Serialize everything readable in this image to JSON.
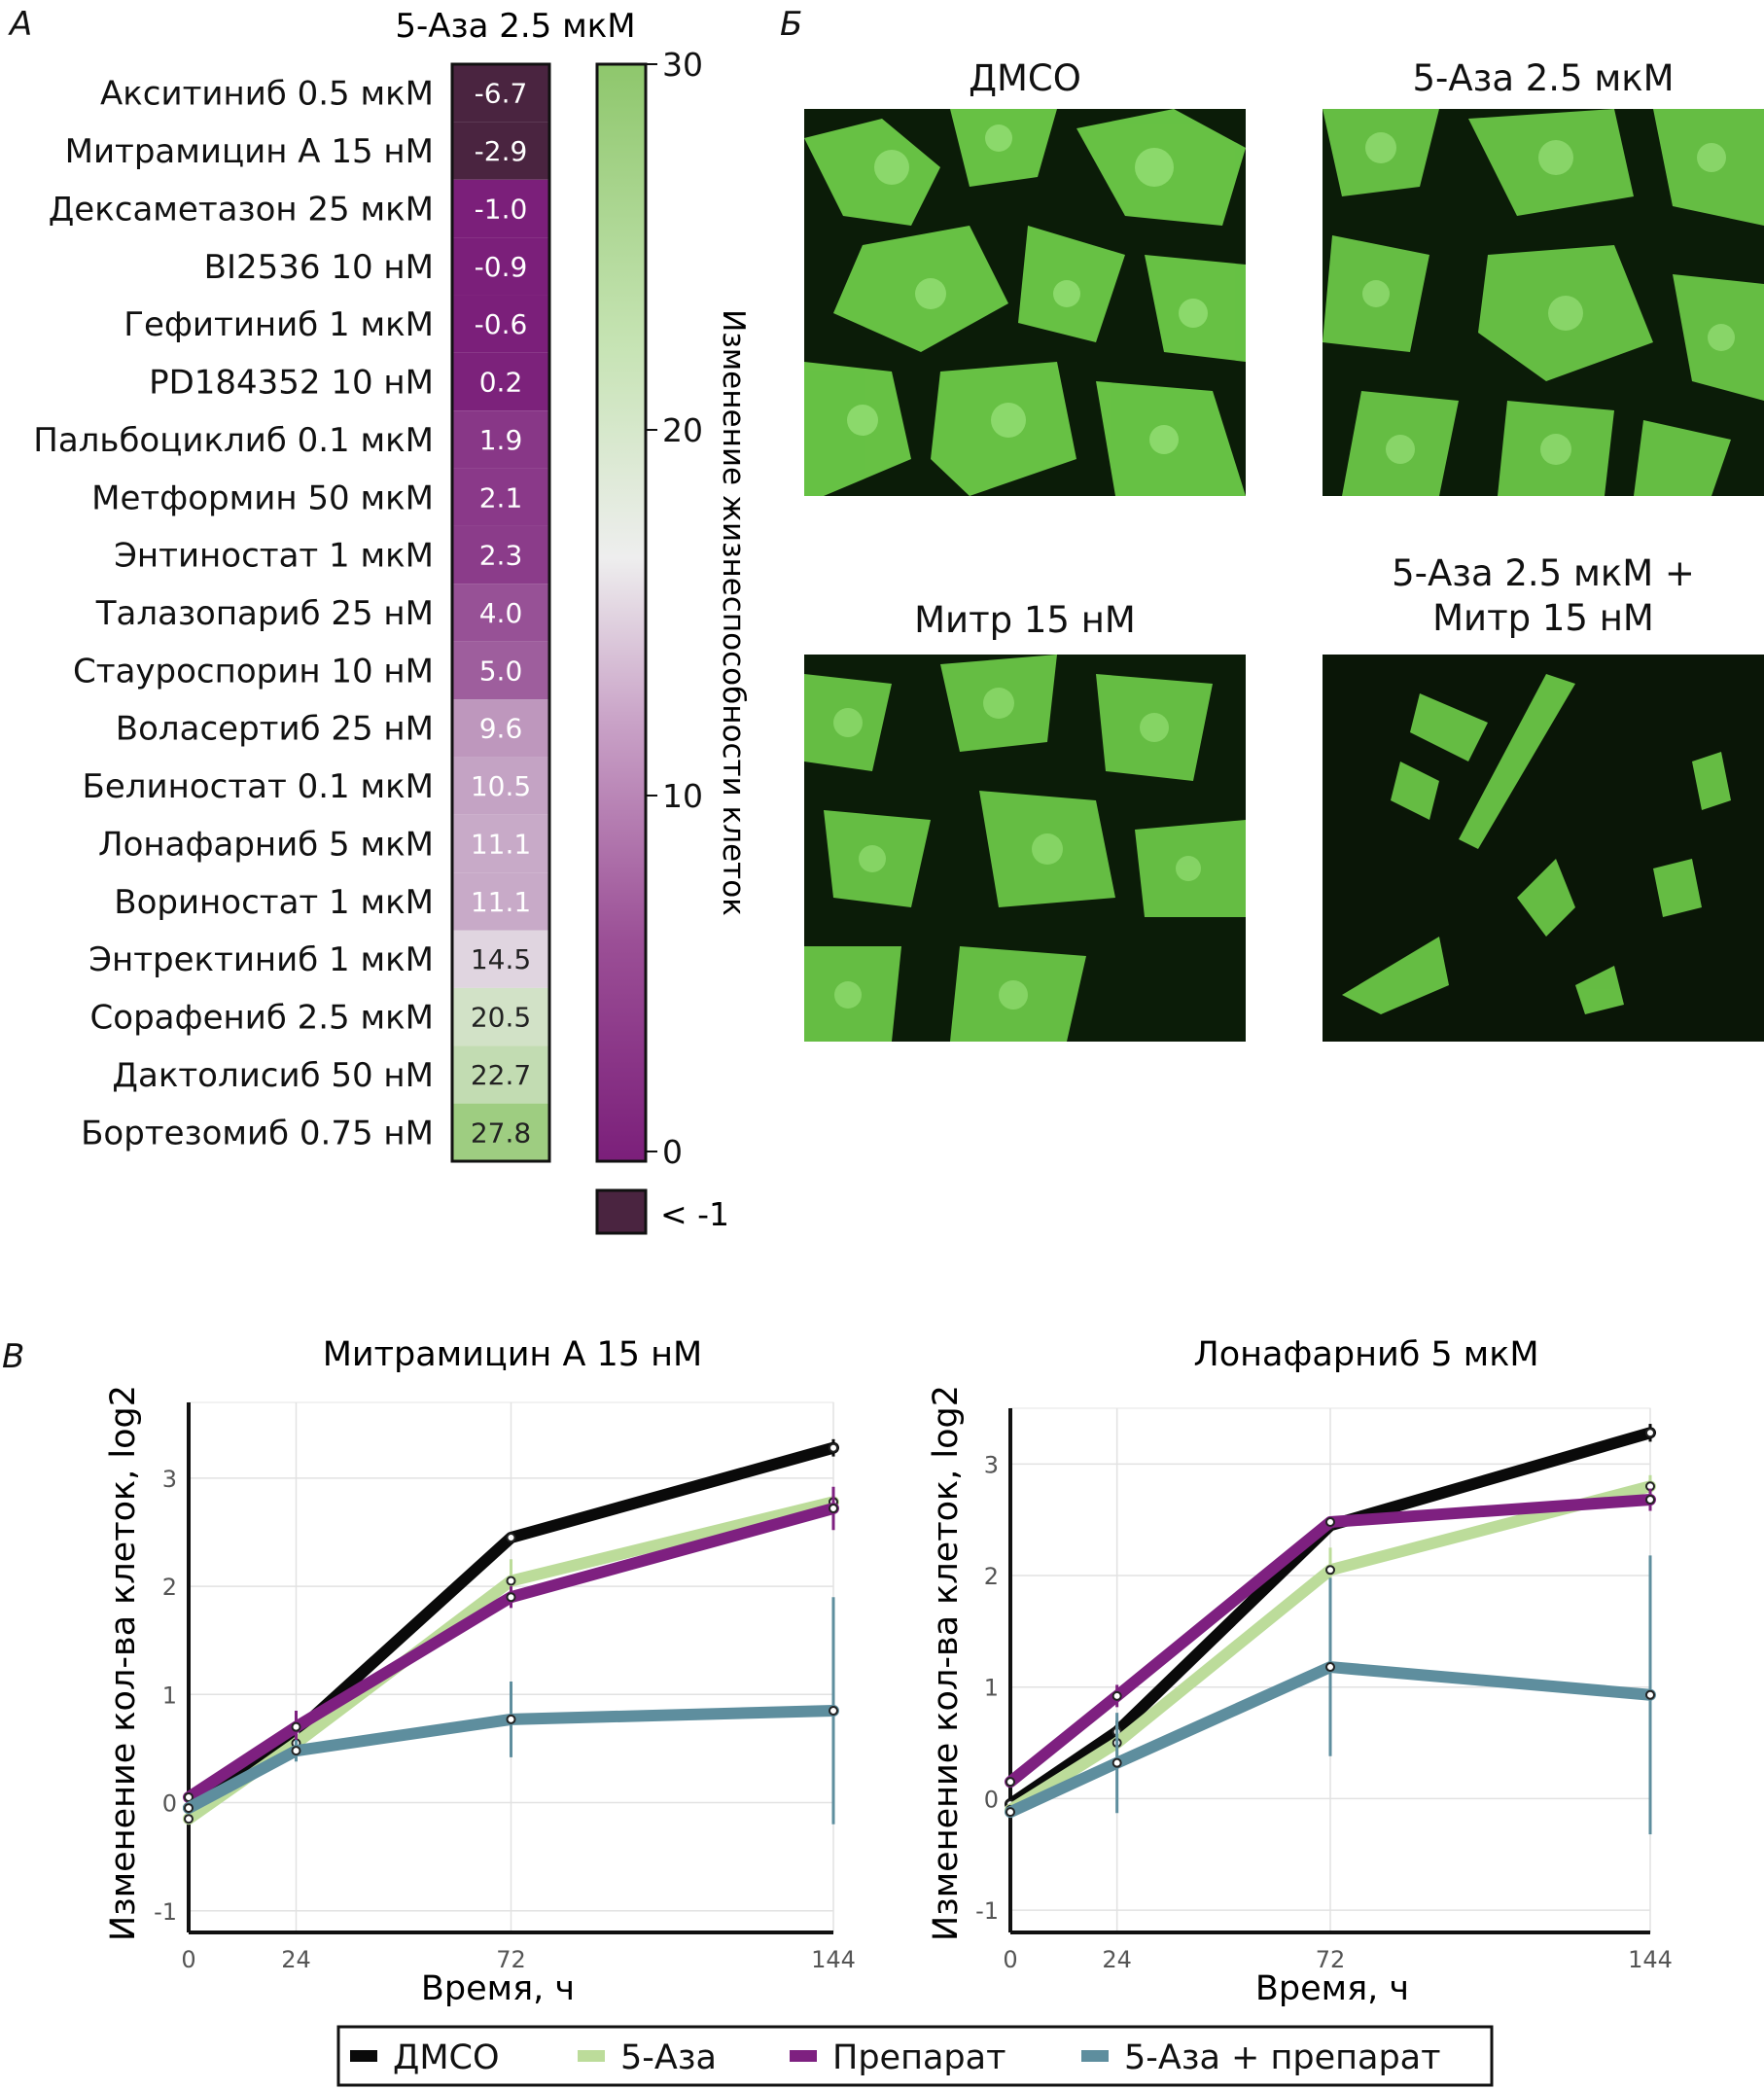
{
  "panels": {
    "a_letter": "А",
    "b_letter": "Б",
    "c_letter": "В"
  },
  "heatmap": {
    "column_label": "5-Аза 2.5 мкМ",
    "colorbar_label": "Изменение жизнеспособности клеток",
    "colorbar_ticks": [
      "30",
      "20",
      "10",
      "0"
    ],
    "under_legend": "< -1",
    "colors": {
      "low": "#7b1f7a",
      "mid": "#eeeeee",
      "high": "#8ec76c",
      "under": "#4a2440"
    }
  },
  "chart_data": [
    {
      "type": "heatmap",
      "column": "5-Аза 2.5 мкМ",
      "rows": [
        "Акситиниб 0.5 мкМ",
        "Митрамицин А 15 нМ",
        "Дексаметазон 25 мкМ",
        "BI2536 10 нМ",
        "Гефитиниб 1 мкМ",
        "PD184352 10 нМ",
        "Пальбоциклиб 0.1 мкМ",
        "Метформин 50 мкМ",
        "Энтиностат 1 мкМ",
        "Талазопариб 25 нМ",
        "Стауроспорин 10 нМ",
        "Воласертиб 25 нМ",
        "Белиностат 0.1 мкМ",
        "Лонафарниб 5 мкМ",
        "Вориностат 1 мкМ",
        "Энтректиниб 1 мкМ",
        "Сорафениб 2.5 мкМ",
        "Дактолисиб 50 нМ",
        "Бортезомиб 0.75 нМ"
      ],
      "values": [
        "-6.7",
        "-2.9",
        "-1.0",
        "-0.9",
        "-0.6",
        "0.2",
        "1.9",
        "2.1",
        "2.3",
        "4.0",
        "5.0",
        "9.6",
        "10.5",
        "11.1",
        "11.1",
        "14.5",
        "20.5",
        "22.7",
        "27.8"
      ],
      "color_range": [
        0,
        30
      ],
      "colorbar_label": "Изменение жизнеспособности клеток"
    },
    {
      "type": "line",
      "title": "Митрамицин А 15 нМ",
      "xlabel": "Время, ч",
      "ylabel": "Изменение кол-ва клеток, log2",
      "x": [
        0,
        24,
        72,
        144
      ],
      "xlim": [
        0,
        144
      ],
      "ylim": [
        -1.2,
        3.7
      ],
      "yticks": [
        "-1",
        "0",
        "1",
        "2",
        "3"
      ],
      "xticks": [
        "0",
        "24",
        "72",
        "144"
      ],
      "grid": true,
      "series": [
        {
          "name": "ДМСО",
          "color": "#0a0a0a",
          "values": [
            -0.05,
            0.65,
            2.45,
            3.28
          ],
          "err": [
            0.05,
            0.1,
            0.05,
            0.08
          ]
        },
        {
          "name": "5-Аза",
          "color": "#bcdc9a",
          "values": [
            -0.15,
            0.55,
            2.05,
            2.78
          ],
          "err": [
            0.05,
            0.15,
            0.2,
            0.1
          ]
        },
        {
          "name": "Препарат",
          "color": "#7e2080",
          "values": [
            0.05,
            0.7,
            1.9,
            2.72
          ],
          "err": [
            0.05,
            0.15,
            0.1,
            0.2
          ]
        },
        {
          "name": "5-Аза + препарат",
          "color": "#5e8e9e",
          "values": [
            -0.05,
            0.48,
            0.77,
            0.85
          ],
          "err": [
            0.05,
            0.1,
            0.35,
            1.05
          ]
        }
      ]
    },
    {
      "type": "line",
      "title": "Лонафарниб 5 мкМ",
      "xlabel": "Время, ч",
      "ylabel": "Изменение кол-ва клеток, log2",
      "x": [
        0,
        24,
        72,
        144
      ],
      "xlim": [
        0,
        144
      ],
      "ylim": [
        -1.2,
        3.5
      ],
      "yticks": [
        "-1",
        "0",
        "1",
        "2",
        "3"
      ],
      "xticks": [
        "0",
        "24",
        "72",
        "144"
      ],
      "grid": true,
      "series": [
        {
          "name": "ДМСО",
          "color": "#0a0a0a",
          "values": [
            -0.05,
            0.6,
            2.45,
            3.28
          ],
          "err": [
            0.05,
            0.1,
            0.05,
            0.08
          ]
        },
        {
          "name": "5-Аза",
          "color": "#bcdc9a",
          "values": [
            -0.1,
            0.5,
            2.05,
            2.8
          ],
          "err": [
            0.05,
            0.15,
            0.2,
            0.1
          ]
        },
        {
          "name": "Препарат",
          "color": "#7e2080",
          "values": [
            0.15,
            0.92,
            2.48,
            2.68
          ],
          "err": [
            0.05,
            0.1,
            0.05,
            0.1
          ]
        },
        {
          "name": "5-Аза + препарат",
          "color": "#5e8e9e",
          "values": [
            -0.12,
            0.32,
            1.18,
            0.93
          ],
          "err": [
            0.05,
            0.45,
            0.8,
            1.25
          ]
        }
      ]
    }
  ],
  "legend": {
    "items": [
      {
        "label": "ДМСО",
        "color": "#0a0a0a"
      },
      {
        "label": "5-Аза",
        "color": "#bcdc9a"
      },
      {
        "label": "Препарат",
        "color": "#7e2080"
      },
      {
        "label": "5-Аза + препарат",
        "color": "#5e8e9e"
      }
    ]
  },
  "micrographs": {
    "dmso": "ДМСО",
    "aza": "5-Аза 2.5 мкМ",
    "mitr": "Митр 15 нМ",
    "combo_line1": "5-Аза 2.5 мкМ +",
    "combo_line2": "Митр 15 нМ"
  }
}
